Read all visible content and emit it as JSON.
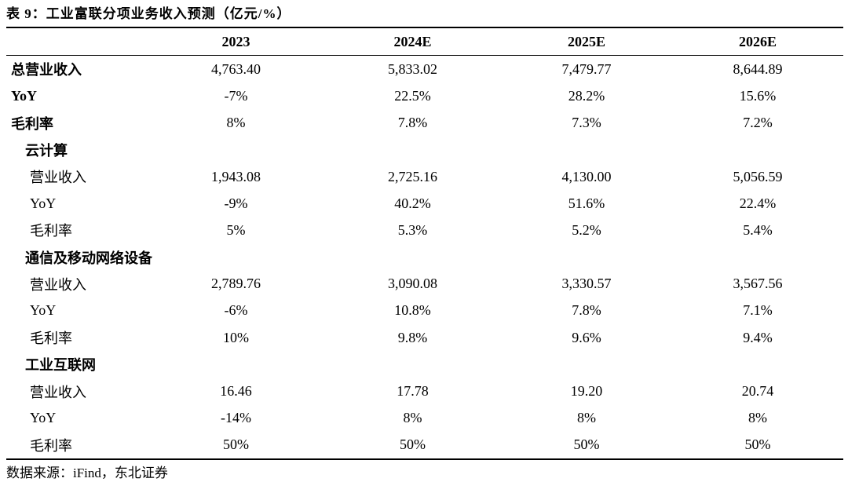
{
  "caption": "表 9：工业富联分项业务收入预测（亿元/%）",
  "header": {
    "label": "",
    "years": [
      "2023",
      "2024E",
      "2025E",
      "2026E"
    ]
  },
  "rows": [
    {
      "label": "总营业收入",
      "values": [
        "4,763.40",
        "5,833.02",
        "7,479.77",
        "8,644.89"
      ]
    },
    {
      "label": "YoY",
      "values": [
        "-7%",
        "22.5%",
        "28.2%",
        "15.6%"
      ]
    },
    {
      "label": "毛利率",
      "values": [
        "8%",
        "7.8%",
        "7.3%",
        "7.2%"
      ]
    },
    {
      "label": "云计算",
      "values": [
        "",
        "",
        "",
        ""
      ]
    },
    {
      "label": "营业收入",
      "values": [
        "1,943.08",
        "2,725.16",
        "4,130.00",
        "5,056.59"
      ]
    },
    {
      "label": "YoY",
      "values": [
        "-9%",
        "40.2%",
        "51.6%",
        "22.4%"
      ]
    },
    {
      "label": "毛利率",
      "values": [
        "5%",
        "5.3%",
        "5.2%",
        "5.4%"
      ]
    },
    {
      "label": "通信及移动网络设备",
      "values": [
        "",
        "",
        "",
        ""
      ]
    },
    {
      "label": "营业收入",
      "values": [
        "2,789.76",
        "3,090.08",
        "3,330.57",
        "3,567.56"
      ]
    },
    {
      "label": "YoY",
      "values": [
        "-6%",
        "10.8%",
        "7.8%",
        "7.1%"
      ]
    },
    {
      "label": "毛利率",
      "values": [
        "10%",
        "9.8%",
        "9.6%",
        "9.4%"
      ]
    },
    {
      "label": "工业互联网",
      "values": [
        "",
        "",
        "",
        ""
      ]
    },
    {
      "label": "营业收入",
      "values": [
        "16.46",
        "17.78",
        "19.20",
        "20.74"
      ]
    },
    {
      "label": "YoY",
      "values": [
        "-14%",
        "8%",
        "8%",
        "8%"
      ]
    },
    {
      "label": "毛利率",
      "values": [
        "50%",
        "50%",
        "50%",
        "50%"
      ]
    }
  ],
  "source": "数据来源：iFind，东北证券"
}
